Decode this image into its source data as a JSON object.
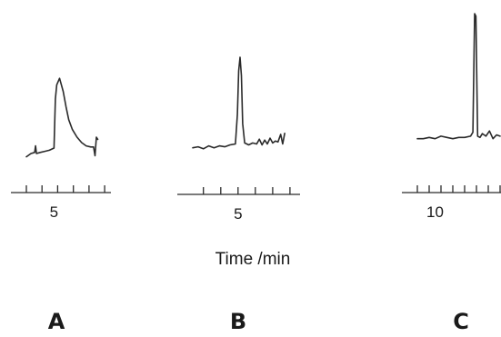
{
  "chart_data": {
    "type": "line",
    "xlabel": "Time /min",
    "panels": [
      {
        "label": "A",
        "tick_labels": [
          {
            "value": 5,
            "text": "5"
          }
        ],
        "xlim": [
          2,
          9.8
        ],
        "ylim": [
          0,
          1
        ],
        "series": [
          {
            "x": [
              2.0,
              2.5,
              2.9,
              3.0,
              3.1,
              3.5,
              4.0,
              4.5,
              5.0,
              5.15,
              5.3,
              5.6,
              6.0,
              6.3,
              6.6,
              7.0,
              7.5,
              8.0,
              8.5,
              9.0,
              9.3,
              9.45,
              9.6,
              9.75
            ],
            "y": [
              0.02,
              0.05,
              0.06,
              0.12,
              0.05,
              0.06,
              0.07,
              0.08,
              0.1,
              0.55,
              0.68,
              0.74,
              0.62,
              0.48,
              0.36,
              0.27,
              0.2,
              0.15,
              0.12,
              0.11,
              0.11,
              0.03,
              0.2,
              0.18
            ]
          }
        ]
      },
      {
        "label": "B",
        "tick_labels": [
          {
            "value": 5,
            "text": "5"
          }
        ],
        "xlim": [
          1.6,
          8.7
        ],
        "ylim": [
          0,
          1
        ],
        "series": [
          {
            "x": [
              1.6,
              2.0,
              2.4,
              2.8,
              3.2,
              3.6,
              4.0,
              4.4,
              4.8,
              4.95,
              5.05,
              5.15,
              5.25,
              5.35,
              5.5,
              5.8,
              6.1,
              6.4,
              6.6,
              6.8,
              7.0,
              7.2,
              7.4,
              7.6,
              7.8,
              8.0,
              8.2,
              8.35,
              8.5
            ],
            "y": [
              0.05,
              0.06,
              0.04,
              0.07,
              0.05,
              0.07,
              0.06,
              0.08,
              0.09,
              0.4,
              0.85,
              0.99,
              0.8,
              0.3,
              0.1,
              0.08,
              0.1,
              0.09,
              0.14,
              0.08,
              0.13,
              0.09,
              0.15,
              0.1,
              0.12,
              0.11,
              0.19,
              0.09,
              0.2
            ]
          }
        ]
      },
      {
        "label": "C",
        "tick_labels": [
          {
            "value": 10,
            "text": "10"
          }
        ],
        "xlim": [
          8.5,
          15.5
        ],
        "ylim": [
          0,
          1
        ],
        "series": [
          {
            "x": [
              8.5,
              9.0,
              9.5,
              10.0,
              10.5,
              11.0,
              11.5,
              12.0,
              12.5,
              13.0,
              13.2,
              13.35,
              13.45,
              13.6,
              13.8,
              14.0,
              14.3,
              14.6,
              14.9,
              15.2,
              15.5
            ],
            "y": [
              0.03,
              0.03,
              0.04,
              0.03,
              0.05,
              0.04,
              0.03,
              0.04,
              0.04,
              0.05,
              0.08,
              1.0,
              0.98,
              0.05,
              0.04,
              0.07,
              0.05,
              0.09,
              0.03,
              0.06,
              0.05
            ]
          }
        ]
      }
    ]
  }
}
